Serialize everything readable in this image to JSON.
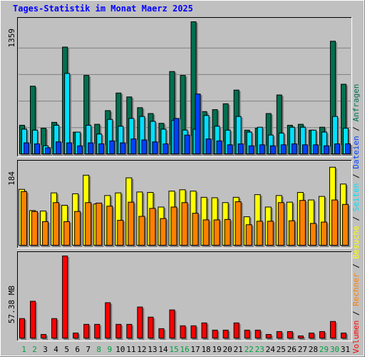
{
  "chart_data": {
    "type": "bar",
    "title": "Tages-Statistik im Monat Maerz 2025",
    "categories": [
      "1",
      "2",
      "3",
      "4",
      "5",
      "6",
      "7",
      "8",
      "9",
      "10",
      "11",
      "12",
      "13",
      "14",
      "15",
      "16",
      "17",
      "18",
      "19",
      "20",
      "21",
      "22",
      "23",
      "24",
      "25",
      "26",
      "27",
      "28",
      "29",
      "30",
      "31"
    ],
    "weekend_days": [
      "1",
      "2",
      "8",
      "9",
      "15",
      "16",
      "22",
      "23",
      "29",
      "30"
    ],
    "panels": [
      {
        "id": "traffic",
        "ylabel": "1359",
        "ylim": [
          0,
          1359
        ],
        "series": [
          {
            "name": "Anfragen",
            "color": "#007050",
            "values": [
              300,
              700,
              270,
              330,
              1100,
              230,
              810,
              310,
              450,
              630,
              590,
              480,
              420,
              320,
              850,
              810,
              1359,
              440,
              460,
              520,
              660,
              250,
              270,
              420,
              610,
              300,
              310,
              250,
              280,
              1160,
              720
            ]
          },
          {
            "name": "Seiten",
            "color": "#00e0ff",
            "values": [
              260,
              250,
              90,
              300,
              830,
              230,
              300,
              210,
              360,
              290,
              370,
              390,
              340,
              260,
              350,
              250,
              260,
              400,
              290,
              250,
              390,
              230,
              280,
              200,
              220,
              280,
              280,
              250,
              230,
              390,
              270
            ]
          },
          {
            "name": "Dateien",
            "color": "#0040ff",
            "values": [
              120,
              110,
              70,
              130,
              120,
              90,
              120,
              110,
              140,
              120,
              160,
              150,
              130,
              110,
              370,
              200,
              620,
              160,
              140,
              100,
              110,
              90,
              100,
              90,
              100,
              110,
              100,
              100,
              90,
              110,
              110
            ]
          }
        ]
      },
      {
        "id": "visits",
        "ylabel": "184",
        "ylim": [
          0,
          184
        ],
        "series": [
          {
            "name": "Besuche",
            "color": "#ffff00",
            "values": [
              128,
              80,
              79,
              120,
              92,
              118,
              160,
              95,
              114,
              120,
              154,
              122,
              121,
              88,
              124,
              127,
              124,
              110,
              109,
              98,
              110,
              66,
              116,
              88,
              114,
              99,
              121,
              104,
              112,
              178,
              140
            ]
          },
          {
            "name": "Rechner",
            "color": "#ff8000",
            "values": [
              123,
              78,
              55,
              98,
              55,
              78,
              98,
              97,
              90,
              58,
              99,
              67,
              85,
              62,
              88,
              98,
              74,
              59,
              59,
              60,
              100,
              48,
              56,
              56,
              98,
              57,
              103,
              51,
              54,
              104,
              94
            ]
          }
        ]
      },
      {
        "id": "volume",
        "ylabel": "57.38 MB",
        "ylim": [
          0,
          57.38
        ],
        "series": [
          {
            "name": "Volumen",
            "color": "#ff0000",
            "values": [
              14,
              26,
              3,
              14,
              57.38,
              4,
              10,
              10,
              25,
              10,
              10,
              22,
              15,
              7,
              20,
              9,
              9,
              11,
              6,
              6,
              11,
              6,
              6,
              3,
              5,
              5,
              2,
              4,
              5,
              12,
              4
            ]
          }
        ]
      }
    ],
    "legend": [
      {
        "text": "Anfragen",
        "color": "#007050"
      },
      {
        "text": "/",
        "color": "#000000"
      },
      {
        "text": "Dateien",
        "color": "#0040ff"
      },
      {
        "text": "/",
        "color": "#000000"
      },
      {
        "text": "Seiten",
        "color": "#00e0ff"
      },
      {
        "text": "/",
        "color": "#000000"
      },
      {
        "text": "Besuche",
        "color": "#ffff00"
      },
      {
        "text": "/",
        "color": "#000000"
      },
      {
        "text": "Rechner",
        "color": "#ff8000"
      },
      {
        "text": "/",
        "color": "#000000"
      },
      {
        "text": "Volumen",
        "color": "#ff0000"
      }
    ],
    "colors": {
      "background": "#c0c0c0",
      "title": "#0000ff",
      "weekend_label": "#00a040",
      "weekday_label": "#000000",
      "gridline": "#808080"
    }
  }
}
